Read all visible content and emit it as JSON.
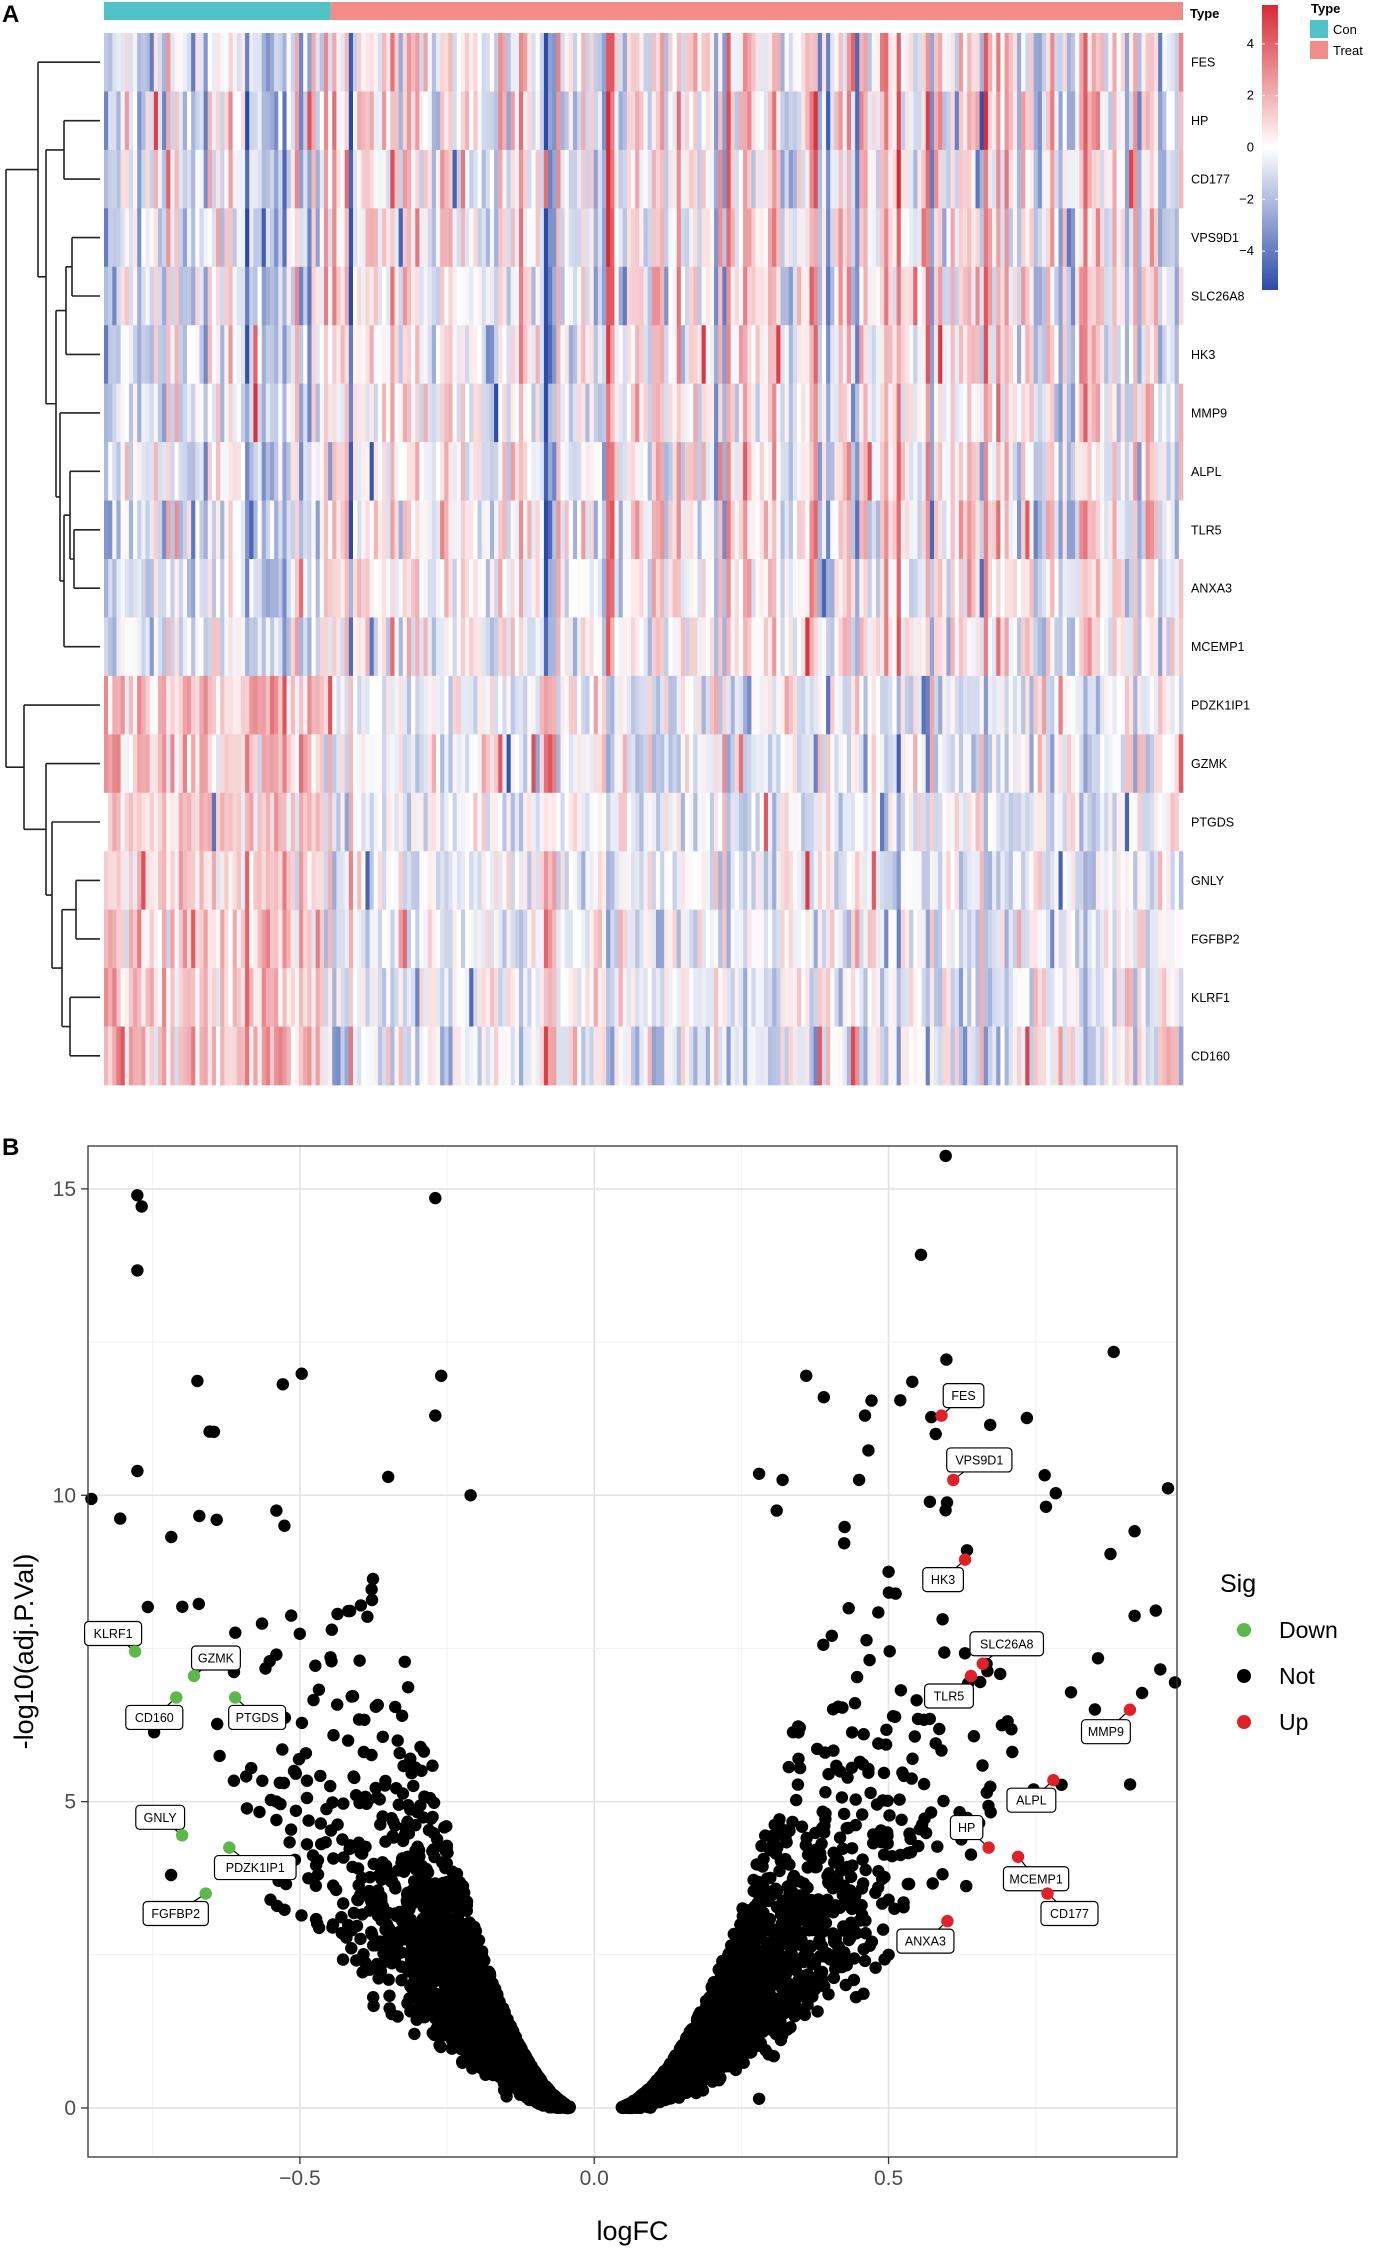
{
  "panels": {
    "a_letter": "A",
    "b_letter": "B"
  },
  "colors": {
    "con": "#4FC3C8",
    "treat": "#F28C88",
    "heat_low": "#2B4BA8",
    "heat_mid": "#FFFFFF",
    "heat_high": "#D72A34",
    "down": "#5DB84A",
    "not": "#000000",
    "up": "#E02128"
  },
  "chart_data": [
    {
      "type": "heatmap",
      "title": "",
      "rows": [
        "FES",
        "HP",
        "CD177",
        "VPS9D1",
        "SLC26A8",
        "HK3",
        "MMP9",
        "ALPL",
        "TLR5",
        "ANXA3",
        "MCEMP1",
        "PDZK1IP1",
        "GZMK",
        "PTGDS",
        "GNLY",
        "FGFBP2",
        "KLRF1",
        "CD160"
      ],
      "row_dendrogram": true,
      "annotation": {
        "name": "Type",
        "groups": [
          {
            "label": "Con",
            "fraction": 0.21,
            "color": "#4FC3C8"
          },
          {
            "label": "Treat",
            "fraction": 0.79,
            "color": "#F28C88"
          }
        ]
      },
      "colorbar": {
        "range": [
          -5.5,
          5.5
        ],
        "ticks": [
          4,
          2,
          0,
          -2,
          -4
        ],
        "tick_labels": [
          "4",
          "2",
          "0",
          "−2",
          "−4"
        ]
      },
      "row_bias": {
        "con": [
          0,
          0,
          0,
          0,
          0,
          0,
          0,
          0,
          0,
          0,
          0,
          1,
          1,
          1,
          1,
          1,
          1,
          1
        ]
      }
    },
    {
      "type": "scatter",
      "title": "",
      "xlabel": "logFC",
      "ylabel": "-log10(adj.P.Val)",
      "xlim": [
        -0.86,
        0.99
      ],
      "ylim": [
        -0.8,
        15.7
      ],
      "xticks": [
        -0.5,
        0.0,
        0.5
      ],
      "xtick_labels": [
        "−0.5",
        "0.0",
        "0.5"
      ],
      "yticks": [
        0,
        5,
        10,
        15
      ],
      "ytick_labels": [
        "0",
        "5",
        "10",
        "15"
      ],
      "legend": {
        "title": "Sig",
        "position": "right",
        "items": [
          {
            "label": "Down",
            "key": "down"
          },
          {
            "label": "Not",
            "key": "not"
          },
          {
            "label": "Up",
            "key": "up"
          }
        ]
      },
      "highlighted": [
        {
          "gene": "KLRF1",
          "x": -0.78,
          "y": 7.45,
          "sig": "down"
        },
        {
          "gene": "GZMK",
          "x": -0.68,
          "y": 7.05,
          "sig": "down"
        },
        {
          "gene": "CD160",
          "x": -0.71,
          "y": 6.7,
          "sig": "down"
        },
        {
          "gene": "PTGDS",
          "x": -0.61,
          "y": 6.7,
          "sig": "down"
        },
        {
          "gene": "GNLY",
          "x": -0.7,
          "y": 4.45,
          "sig": "down"
        },
        {
          "gene": "PDZK1IP1",
          "x": -0.62,
          "y": 4.25,
          "sig": "down"
        },
        {
          "gene": "FGFBP2",
          "x": -0.66,
          "y": 3.5,
          "sig": "down"
        },
        {
          "gene": "FES",
          "x": 0.59,
          "y": 11.3,
          "sig": "up"
        },
        {
          "gene": "VPS9D1",
          "x": 0.61,
          "y": 10.25,
          "sig": "up"
        },
        {
          "gene": "HK3",
          "x": 0.63,
          "y": 8.95,
          "sig": "up"
        },
        {
          "gene": "SLC26A8",
          "x": 0.66,
          "y": 7.25,
          "sig": "up"
        },
        {
          "gene": "TLR5",
          "x": 0.64,
          "y": 7.05,
          "sig": "up"
        },
        {
          "gene": "MMP9",
          "x": 0.91,
          "y": 6.5,
          "sig": "up"
        },
        {
          "gene": "ALPL",
          "x": 0.78,
          "y": 5.35,
          "sig": "up"
        },
        {
          "gene": "HP",
          "x": 0.67,
          "y": 4.25,
          "sig": "up"
        },
        {
          "gene": "MCEMP1",
          "x": 0.72,
          "y": 4.1,
          "sig": "up"
        },
        {
          "gene": "CD177",
          "x": 0.77,
          "y": 3.5,
          "sig": "up"
        },
        {
          "gene": "ANXA3",
          "x": 0.6,
          "y": 3.05,
          "sig": "up"
        }
      ],
      "notable_points": [
        {
          "x": -0.27,
          "y": 14.85
        },
        {
          "x": -0.26,
          "y": 11.95
        },
        {
          "x": -0.27,
          "y": 11.3
        },
        {
          "x": 0.36,
          "y": 11.95
        },
        {
          "x": 0.39,
          "y": 11.6
        },
        {
          "x": 0.52,
          "y": 11.55
        },
        {
          "x": 0.46,
          "y": 11.3
        },
        {
          "x": 0.58,
          "y": 11.0
        },
        {
          "x": -0.35,
          "y": 10.3
        },
        {
          "x": -0.21,
          "y": 10.0
        },
        {
          "x": 0.28,
          "y": 10.35
        },
        {
          "x": 0.32,
          "y": 10.25
        },
        {
          "x": 0.45,
          "y": 10.25
        },
        {
          "x": -0.54,
          "y": 9.75
        },
        {
          "x": 0.31,
          "y": 9.75
        },
        {
          "x": 0.5,
          "y": 8.75
        },
        {
          "x": -0.54,
          "y": 7.4
        },
        {
          "x": -0.53,
          "y": 5.85
        },
        {
          "x": -0.51,
          "y": 5.5
        },
        {
          "x": -0.54,
          "y": 5.0
        },
        {
          "x": -0.54,
          "y": 4.7
        },
        {
          "x": -0.55,
          "y": 3.4
        },
        {
          "x": 0.5,
          "y": 3.4
        },
        {
          "x": 0.51,
          "y": 3.25
        },
        {
          "x": 0.46,
          "y": 2.4
        },
        {
          "x": 0.5,
          "y": 2.5
        },
        {
          "x": 0.28,
          "y": 0.15
        },
        {
          "x": 0.55,
          "y": 6.35
        },
        {
          "x": 0.57,
          "y": 6.35
        },
        {
          "x": 0.58,
          "y": 5.95
        }
      ]
    }
  ]
}
